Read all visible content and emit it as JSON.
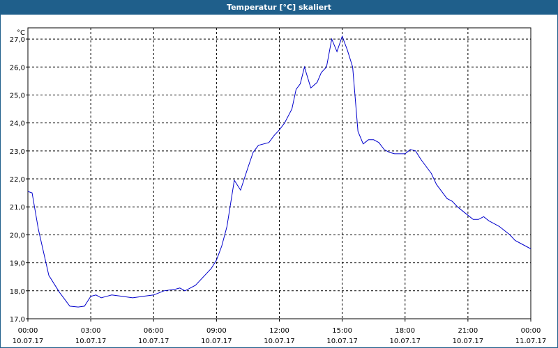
{
  "window": {
    "title": "Temperatur [°C] skaliert",
    "title_bg": "#1f5f8b"
  },
  "chart_data": {
    "type": "line",
    "ylabel": "°C",
    "ylim": [
      17.0,
      27.4
    ],
    "y_ticks": [
      "17,0",
      "18,0",
      "19,0",
      "20,0",
      "21,0",
      "22,0",
      "23,0",
      "24,0",
      "25,0",
      "26,0",
      "27,0"
    ],
    "y_tick_values": [
      17,
      18,
      19,
      20,
      21,
      22,
      23,
      24,
      25,
      26,
      27
    ],
    "x_ticks": [
      {
        "time": "00:00",
        "date": "10.07.17"
      },
      {
        "time": "03:00",
        "date": "10.07.17"
      },
      {
        "time": "06:00",
        "date": "10.07.17"
      },
      {
        "time": "09:00",
        "date": "10.07.17"
      },
      {
        "time": "12:00",
        "date": "10.07.17"
      },
      {
        "time": "15:00",
        "date": "10.07.17"
      },
      {
        "time": "18:00",
        "date": "10.07.17"
      },
      {
        "time": "21:00",
        "date": "10.07.17"
      },
      {
        "time": "00:00",
        "date": "11.07.17"
      }
    ],
    "grid": true,
    "grid_style": "dashed",
    "line_color": "#0000cc",
    "series": [
      {
        "x_hours": [
          0.0,
          0.2,
          0.5,
          1.0,
          1.5,
          2.0,
          2.4,
          2.7,
          3.0,
          3.25,
          3.5,
          3.75,
          4.0,
          4.5,
          5.0,
          5.5,
          6.0,
          6.5,
          7.0,
          7.25,
          7.5,
          8.0,
          8.5,
          8.75,
          9.0,
          9.25,
          9.5,
          9.85,
          10.15,
          10.5,
          10.75,
          11.0,
          11.5,
          11.75,
          12.0,
          12.25,
          12.6,
          12.8,
          13.0,
          13.2,
          13.5,
          13.8,
          14.0,
          14.25,
          14.5,
          14.75,
          15.0,
          15.25,
          15.5,
          15.75,
          16.0,
          16.25,
          16.5,
          16.75,
          17.0,
          17.25,
          17.5,
          18.0,
          18.25,
          18.5,
          18.75,
          19.0,
          19.25,
          19.5,
          19.75,
          20.0,
          20.25,
          20.5,
          21.0,
          21.25,
          21.5,
          21.75,
          22.0,
          22.25,
          22.5,
          22.75,
          23.0,
          23.25,
          23.5,
          23.75,
          24.0
        ],
        "values": [
          21.55,
          21.5,
          20.2,
          18.55,
          17.95,
          17.45,
          17.42,
          17.45,
          17.8,
          17.85,
          17.75,
          17.8,
          17.85,
          17.8,
          17.75,
          17.8,
          17.85,
          18.0,
          18.05,
          18.1,
          18.0,
          18.2,
          18.6,
          18.8,
          19.1,
          19.6,
          20.3,
          21.95,
          21.6,
          22.4,
          22.95,
          23.2,
          23.3,
          23.55,
          23.75,
          24.0,
          24.5,
          25.2,
          25.4,
          26.0,
          25.25,
          25.45,
          25.8,
          26.0,
          27.0,
          26.55,
          27.1,
          26.6,
          26.0,
          23.7,
          23.25,
          23.4,
          23.4,
          23.3,
          23.05,
          22.95,
          22.9,
          22.9,
          23.05,
          23.0,
          22.7,
          22.45,
          22.2,
          21.8,
          21.55,
          21.3,
          21.2,
          21.0,
          20.7,
          20.55,
          20.55,
          20.65,
          20.5,
          20.4,
          20.3,
          20.15,
          20.0,
          19.8,
          19.7,
          19.6,
          19.5
        ]
      }
    ]
  }
}
